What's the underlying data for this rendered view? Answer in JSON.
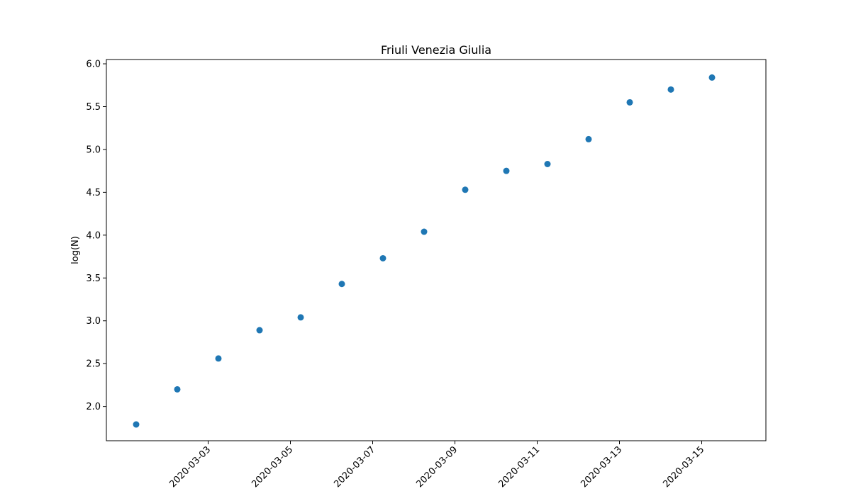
{
  "chart_data": {
    "type": "scatter",
    "title": "Friuli Venezia Giulia",
    "xlabel": "",
    "ylabel": "log(N)",
    "x_type": "date",
    "x_tick_labels": [
      "2020-03-03",
      "2020-03-05",
      "2020-03-07",
      "2020-03-09",
      "2020-03-11",
      "2020-03-13",
      "2020-03-15"
    ],
    "y_tick_labels": [
      "2.0",
      "2.5",
      "3.0",
      "3.5",
      "4.0",
      "4.5",
      "5.0",
      "5.5",
      "6.0"
    ],
    "xlim": [
      "2020-03-01",
      "2020-03-16"
    ],
    "ylim": [
      1.6,
      6.05
    ],
    "grid": false,
    "legend": false,
    "color": "#1f77b4",
    "series": [
      {
        "x": [
          "2020-03-01",
          "2020-03-02",
          "2020-03-03",
          "2020-03-04",
          "2020-03-05",
          "2020-03-06",
          "2020-03-07",
          "2020-03-08",
          "2020-03-09",
          "2020-03-10",
          "2020-03-11",
          "2020-03-12",
          "2020-03-13",
          "2020-03-14",
          "2020-03-15"
        ],
        "y": [
          1.79,
          2.2,
          2.56,
          2.89,
          3.04,
          3.43,
          3.73,
          4.04,
          4.53,
          4.75,
          4.83,
          5.12,
          5.55,
          5.7,
          5.84
        ]
      }
    ]
  }
}
